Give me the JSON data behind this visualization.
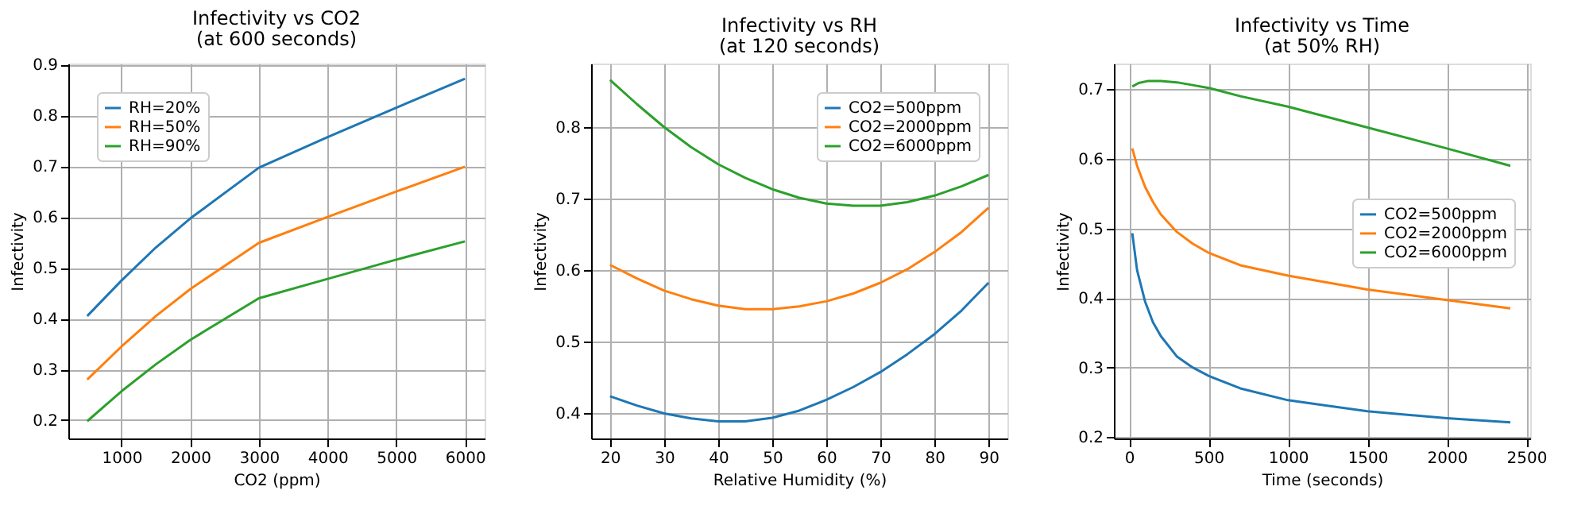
{
  "chart_data": [
    {
      "type": "line",
      "title": "Infectivity vs CO2",
      "subtitle": "(at 600 seconds)",
      "xlabel": "CO2 (ppm)",
      "ylabel": "Infectivity",
      "xlim": [
        225,
        6287
      ],
      "xticks": [
        1000,
        2000,
        3000,
        4000,
        5000,
        6000
      ],
      "ylim": [
        0.164,
        0.902
      ],
      "yticks": [
        0.2,
        0.3,
        0.4,
        0.5,
        0.6,
        0.7,
        0.8,
        0.9
      ],
      "grid": true,
      "legend": "top left",
      "series": [
        {
          "name": "RH=20%",
          "color": "#1f77b4",
          "x": [
            500,
            1000,
            1500,
            2000,
            3000,
            4000,
            5000,
            6000
          ],
          "values": [
            0.405,
            0.475,
            0.54,
            0.597,
            0.697,
            0.757,
            0.815,
            0.872
          ]
        },
        {
          "name": "RH=50%",
          "color": "#ff7f0e",
          "x": [
            500,
            1000,
            1500,
            2000,
            3000,
            4000,
            5000,
            6000
          ],
          "values": [
            0.28,
            0.345,
            0.405,
            0.458,
            0.549,
            0.6,
            0.65,
            0.699
          ]
        },
        {
          "name": "RH=90%",
          "color": "#2ca02c",
          "x": [
            500,
            1000,
            1500,
            2000,
            3000,
            4000,
            5000,
            6000
          ],
          "values": [
            0.198,
            0.257,
            0.31,
            0.358,
            0.44,
            0.478,
            0.516,
            0.552
          ]
        }
      ]
    },
    {
      "type": "line",
      "title": "Infectivity vs RH",
      "subtitle": "(at 120 seconds)",
      "xlabel": "Relative Humidity (%)",
      "ylabel": "Infectivity",
      "xlim": [
        16.5,
        93.5
      ],
      "xticks": [
        20,
        30,
        40,
        50,
        60,
        70,
        80,
        90
      ],
      "ylim": [
        0.364,
        0.889
      ],
      "yticks": [
        0.4,
        0.5,
        0.6,
        0.7,
        0.8
      ],
      "grid": true,
      "legend": "top right",
      "series": [
        {
          "name": "CO2=500ppm",
          "color": "#1f77b4",
          "x": [
            20,
            25,
            30,
            35,
            40,
            45,
            50,
            55,
            60,
            65,
            70,
            75,
            80,
            85,
            90
          ],
          "values": [
            0.423,
            0.41,
            0.399,
            0.392,
            0.388,
            0.388,
            0.393,
            0.403,
            0.418,
            0.436,
            0.457,
            0.482,
            0.51,
            0.543,
            0.582
          ]
        },
        {
          "name": "CO2=2000ppm",
          "color": "#ff7f0e",
          "x": [
            20,
            25,
            30,
            35,
            40,
            45,
            50,
            55,
            60,
            65,
            70,
            75,
            80,
            85,
            90
          ],
          "values": [
            0.607,
            0.588,
            0.571,
            0.559,
            0.55,
            0.545,
            0.545,
            0.549,
            0.556,
            0.567,
            0.582,
            0.601,
            0.625,
            0.653,
            0.687
          ]
        },
        {
          "name": "CO2=6000ppm",
          "color": "#2ca02c",
          "x": [
            20,
            25,
            30,
            35,
            40,
            45,
            50,
            55,
            60,
            65,
            70,
            75,
            80,
            85,
            90
          ],
          "values": [
            0.866,
            0.832,
            0.8,
            0.772,
            0.748,
            0.729,
            0.713,
            0.701,
            0.693,
            0.69,
            0.69,
            0.695,
            0.704,
            0.717,
            0.733
          ]
        }
      ]
    },
    {
      "type": "line",
      "title": "Infectivity vs Time",
      "subtitle": "(at 50% RH)",
      "xlabel": "Time (seconds)",
      "ylabel": "Infectivity",
      "xlim": [
        -96,
        2525
      ],
      "xticks": [
        0,
        500,
        1000,
        1500,
        2000,
        2500
      ],
      "ylim": [
        0.198,
        0.737
      ],
      "yticks": [
        0.2,
        0.3,
        0.4,
        0.5,
        0.6,
        0.7
      ],
      "grid": true,
      "legend": "right",
      "series": [
        {
          "name": "CO2=500ppm",
          "color": "#1f77b4",
          "x": [
            20,
            50,
            100,
            150,
            200,
            300,
            400,
            500,
            700,
            1000,
            1500,
            2000,
            2400
          ],
          "values": [
            0.493,
            0.44,
            0.395,
            0.365,
            0.345,
            0.316,
            0.3,
            0.288,
            0.27,
            0.253,
            0.237,
            0.227,
            0.221
          ]
        },
        {
          "name": "CO2=2000ppm",
          "color": "#ff7f0e",
          "x": [
            20,
            50,
            100,
            150,
            200,
            300,
            400,
            500,
            700,
            1000,
            1500,
            2000,
            2400
          ],
          "values": [
            0.615,
            0.59,
            0.56,
            0.538,
            0.52,
            0.495,
            0.478,
            0.465,
            0.447,
            0.432,
            0.412,
            0.397,
            0.385
          ]
        },
        {
          "name": "CO2=6000ppm",
          "color": "#2ca02c",
          "x": [
            20,
            60,
            120,
            200,
            300,
            400,
            500,
            700,
            1000,
            1500,
            2000,
            2400
          ],
          "values": [
            0.704,
            0.709,
            0.712,
            0.712,
            0.71,
            0.706,
            0.702,
            0.69,
            0.675,
            0.645,
            0.615,
            0.59
          ]
        }
      ]
    }
  ]
}
